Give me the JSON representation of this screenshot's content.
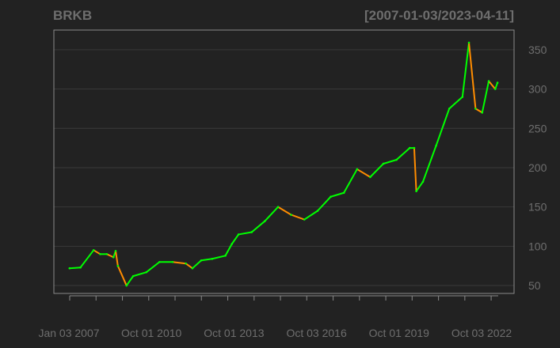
{
  "chart_data": {
    "type": "line",
    "symbol": "BRKB",
    "date_range": "[2007-01-03/2023-04-11]",
    "x_tick_labels": [
      "Jan 03 2007",
      "Oct 01 2010",
      "Oct 01 2013",
      "Oct 03 2016",
      "Oct 01 2019",
      "Oct 03 2022"
    ],
    "y_ticks": [
      50,
      100,
      150,
      200,
      250,
      300,
      350
    ],
    "ylim": [
      40,
      375
    ],
    "xlim": [
      "2007-01-03",
      "2023-04-11"
    ],
    "grid": true,
    "colors": {
      "up": "#00ff00",
      "down": "#ff8c00",
      "background": "#222222",
      "text": "#6e6e6e",
      "grid": "#3a3a3a",
      "axis": "#8a8a8a"
    },
    "series": [
      {
        "x": [
          "2007-01",
          "2007-06",
          "2007-12",
          "2008-03",
          "2008-06",
          "2008-09",
          "2008-10",
          "2008-11",
          "2009-03",
          "2009-06",
          "2009-12",
          "2010-06",
          "2010-12",
          "2011-06",
          "2011-09",
          "2012-01",
          "2012-06",
          "2012-12",
          "2013-03",
          "2013-06",
          "2013-12",
          "2014-06",
          "2014-12",
          "2015-06",
          "2015-12",
          "2016-06",
          "2016-12",
          "2017-06",
          "2017-12",
          "2018-06",
          "2018-12",
          "2019-06",
          "2019-12",
          "2020-02",
          "2020-03",
          "2020-06",
          "2020-12",
          "2021-06",
          "2021-12",
          "2022-03",
          "2022-06",
          "2022-09",
          "2022-12",
          "2023-03",
          "2023-04"
        ],
        "y": [
          72,
          73,
          95,
          90,
          90,
          86,
          94,
          75,
          50,
          62,
          67,
          80,
          80,
          78,
          72,
          82,
          84,
          88,
          103,
          115,
          118,
          132,
          150,
          140,
          134,
          145,
          163,
          168,
          198,
          188,
          205,
          210,
          225,
          225,
          170,
          182,
          228,
          275,
          290,
          359,
          275,
          270,
          310,
          300,
          308
        ]
      }
    ]
  }
}
